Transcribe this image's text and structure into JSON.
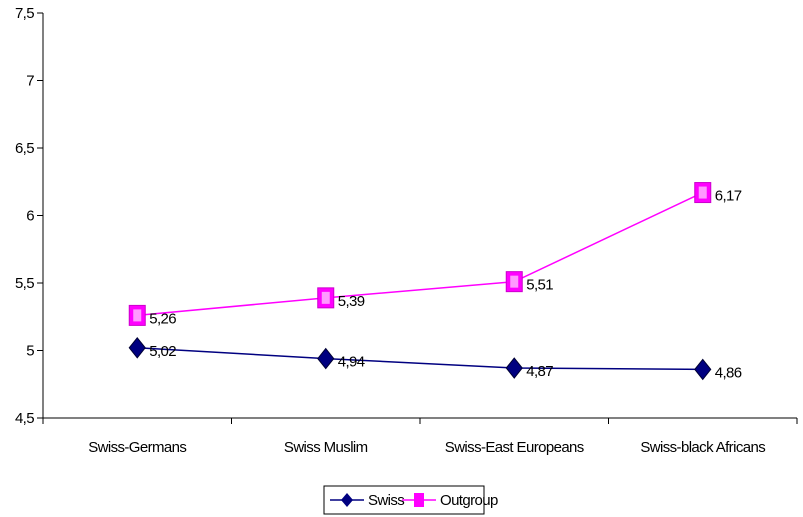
{
  "chart_data": {
    "type": "line",
    "categories": [
      "Swiss-Germans",
      "Swiss Muslim",
      "Swiss-East Europeans",
      "Swiss-black Africans"
    ],
    "ylim": [
      4.5,
      7.5
    ],
    "yticks": [
      4.5,
      5,
      5.5,
      6,
      6.5,
      7,
      7.5
    ],
    "ytick_labels": [
      "4,5",
      "5",
      "5,5",
      "6",
      "6,5",
      "7",
      "7,5"
    ],
    "series": [
      {
        "name": "Swiss",
        "values": [
          5.02,
          4.94,
          4.87,
          4.86
        ],
        "labels": [
          "5,02",
          "4,94",
          "4,87",
          "4,86"
        ],
        "color": "#000080",
        "marker": "diamond"
      },
      {
        "name": "Outgroup",
        "values": [
          5.26,
          5.39,
          5.51,
          6.17
        ],
        "labels": [
          "5,26",
          "5,39",
          "5,51",
          "6,17"
        ],
        "color": "#ff00ff",
        "marker": "square"
      }
    ],
    "legend_position": "bottom",
    "grid": false
  }
}
